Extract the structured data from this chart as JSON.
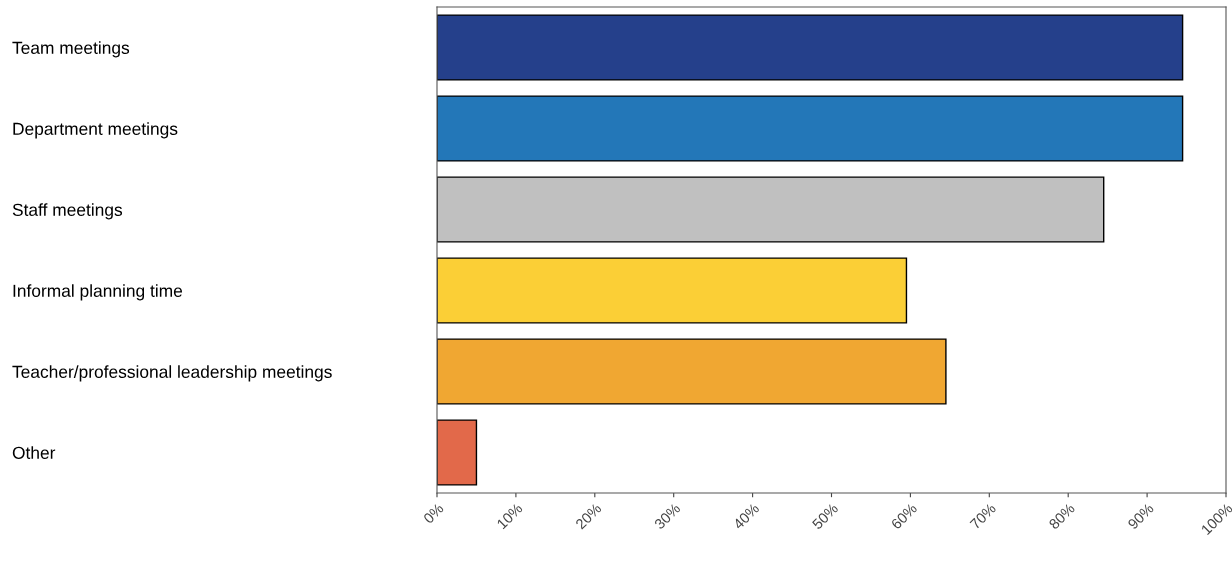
{
  "chart_data": {
    "type": "bar",
    "orientation": "horizontal",
    "categories": [
      "Team meetings",
      "Department meetings",
      "Staff meetings",
      "Informal planning time",
      "Teacher/professional leadership meetings",
      "Other"
    ],
    "values": [
      94.5,
      94.5,
      84.5,
      59.5,
      64.5,
      5
    ],
    "colors": [
      "#25408b",
      "#2377b8",
      "#c0c0c0",
      "#fbcf36",
      "#f0a732",
      "#e2694a"
    ],
    "xlim": [
      0,
      100
    ],
    "xticks": [
      {
        "value": 0,
        "label": "0%"
      },
      {
        "value": 10,
        "label": "10%"
      },
      {
        "value": 20,
        "label": "20%"
      },
      {
        "value": 30,
        "label": "30%"
      },
      {
        "value": 40,
        "label": "40%"
      },
      {
        "value": 50,
        "label": "50%"
      },
      {
        "value": 60,
        "label": "60%"
      },
      {
        "value": 70,
        "label": "70%"
      },
      {
        "value": 80,
        "label": "80%"
      },
      {
        "value": 90,
        "label": "90%"
      },
      {
        "value": 100,
        "label": "100%"
      }
    ],
    "grid": false
  }
}
